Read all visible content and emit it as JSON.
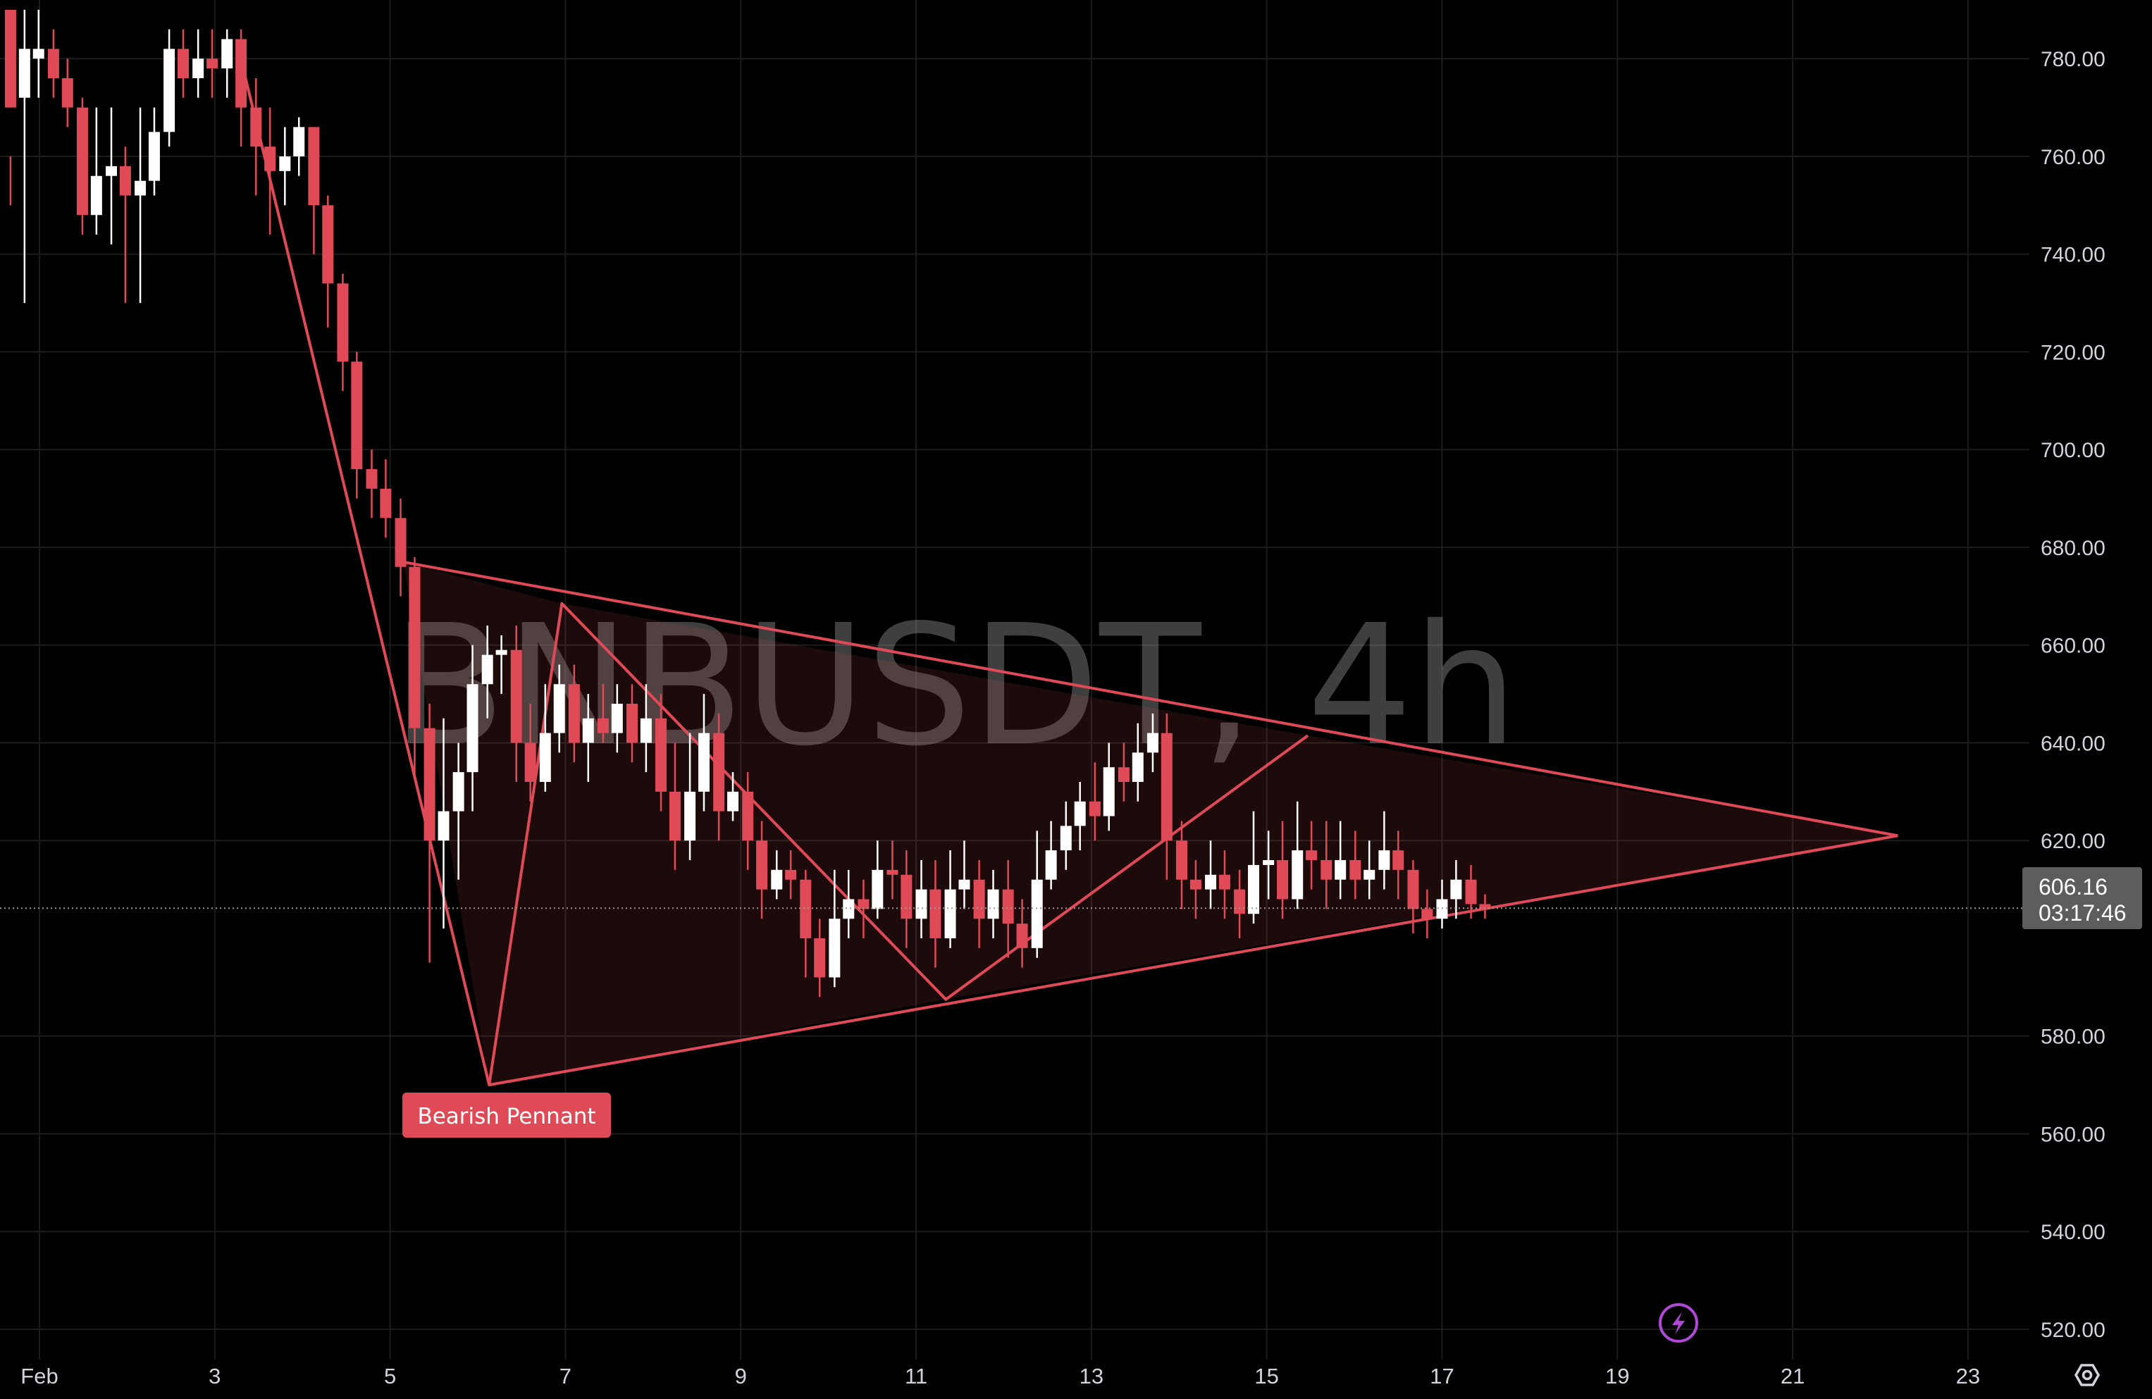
{
  "chart_data": {
    "type": "candlestick",
    "symbol": "BNBUSDT",
    "interval": "4h",
    "watermark": "BNBUSDT, 4h",
    "y_ticks": [
      780,
      760,
      740,
      720,
      700,
      680,
      660,
      640,
      620,
      580,
      560,
      540,
      520
    ],
    "y_tick_labels": [
      "780.00",
      "760.00",
      "740.00",
      "720.00",
      "700.00",
      "680.00",
      "660.00",
      "640.00",
      "620.00",
      "580.00",
      "560.00",
      "540.00",
      "520.00"
    ],
    "ylim": [
      513.8,
      792
    ],
    "x_tick_labels": [
      "Feb",
      "3",
      "5",
      "7",
      "9",
      "11",
      "13",
      "15",
      "17",
      "19",
      "21",
      "23"
    ],
    "x_tick_days": [
      1,
      3,
      5,
      7,
      9,
      11,
      13,
      15,
      17,
      19,
      21,
      23
    ],
    "xlim_days": [
      0.55,
      23.7
    ],
    "current_price": "606.16",
    "countdown": "03:17:46",
    "last_price": 606.16,
    "candles": [
      [
        0.67,
        790,
        770,
        760,
        750
      ],
      [
        0.83,
        772,
        782,
        790,
        730
      ],
      [
        0.99,
        780,
        782,
        790,
        772
      ],
      [
        1.16,
        782,
        776,
        786,
        772
      ],
      [
        1.32,
        776,
        770,
        780,
        766
      ],
      [
        1.49,
        770,
        748,
        772,
        744
      ],
      [
        1.65,
        748,
        756,
        770,
        744
      ],
      [
        1.82,
        756,
        758,
        770,
        742
      ],
      [
        1.98,
        758,
        752,
        762,
        730
      ],
      [
        2.15,
        752,
        755,
        770,
        730
      ],
      [
        2.31,
        755,
        765,
        770,
        752
      ],
      [
        2.48,
        765,
        782,
        786,
        762
      ],
      [
        2.64,
        782,
        776,
        786,
        772
      ],
      [
        2.81,
        776,
        780,
        786,
        772
      ],
      [
        2.97,
        780,
        778,
        786,
        772
      ],
      [
        3.14,
        778,
        784,
        786,
        772
      ],
      [
        3.3,
        784,
        770,
        786,
        762
      ],
      [
        3.47,
        770,
        762,
        776,
        752
      ],
      [
        3.63,
        762,
        757,
        770,
        744
      ],
      [
        3.8,
        757,
        760,
        766,
        750
      ],
      [
        3.96,
        760,
        766,
        768,
        756
      ],
      [
        4.13,
        766,
        750,
        766,
        740
      ],
      [
        4.29,
        750,
        734,
        752,
        725
      ],
      [
        4.46,
        734,
        718,
        736,
        712
      ],
      [
        4.62,
        718,
        696,
        720,
        690
      ],
      [
        4.79,
        696,
        692,
        700,
        686
      ],
      [
        4.95,
        692,
        686,
        698,
        682
      ],
      [
        5.12,
        686,
        676,
        690,
        670
      ],
      [
        5.28,
        676,
        643,
        678,
        633
      ],
      [
        5.45,
        643,
        620,
        648,
        595
      ],
      [
        5.61,
        620,
        626,
        645,
        602
      ],
      [
        5.78,
        626,
        634,
        640,
        612
      ],
      [
        5.94,
        634,
        652,
        660,
        626
      ],
      [
        6.11,
        652,
        658,
        664,
        645
      ],
      [
        6.27,
        658,
        659,
        662,
        650
      ],
      [
        6.44,
        659,
        640,
        664,
        632
      ],
      [
        6.6,
        640,
        632,
        648,
        628
      ],
      [
        6.77,
        632,
        642,
        652,
        630
      ],
      [
        6.93,
        642,
        652,
        656,
        638
      ],
      [
        7.1,
        652,
        640,
        656,
        636
      ],
      [
        7.26,
        640,
        645,
        650,
        632
      ],
      [
        7.43,
        645,
        642,
        652,
        640
      ],
      [
        7.59,
        642,
        648,
        652,
        638
      ],
      [
        7.76,
        648,
        640,
        652,
        636
      ],
      [
        7.92,
        640,
        645,
        652,
        634
      ],
      [
        8.09,
        645,
        630,
        650,
        626
      ],
      [
        8.25,
        630,
        620,
        640,
        614
      ],
      [
        8.42,
        620,
        630,
        642,
        616
      ],
      [
        8.58,
        630,
        642,
        650,
        626
      ],
      [
        8.75,
        642,
        626,
        646,
        620
      ],
      [
        8.91,
        626,
        630,
        634,
        624
      ],
      [
        9.08,
        630,
        620,
        634,
        614
      ],
      [
        9.24,
        620,
        610,
        624,
        604
      ],
      [
        9.41,
        610,
        614,
        618,
        608
      ],
      [
        9.57,
        614,
        612,
        618,
        608
      ],
      [
        9.74,
        612,
        600,
        614,
        592
      ],
      [
        9.9,
        600,
        592,
        604,
        588
      ],
      [
        10.07,
        592,
        604,
        614,
        590
      ],
      [
        10.23,
        604,
        608,
        614,
        600
      ],
      [
        10.4,
        608,
        606,
        612,
        600
      ],
      [
        10.56,
        606,
        614,
        620,
        604
      ],
      [
        10.73,
        614,
        613,
        620,
        608
      ],
      [
        10.89,
        613,
        604,
        618,
        598
      ],
      [
        11.06,
        604,
        610,
        616,
        600
      ],
      [
        11.22,
        610,
        600,
        616,
        594
      ],
      [
        11.39,
        600,
        610,
        618,
        598
      ],
      [
        11.55,
        610,
        612,
        620,
        606
      ],
      [
        11.72,
        612,
        604,
        616,
        598
      ],
      [
        11.88,
        604,
        610,
        614,
        600
      ],
      [
        12.05,
        610,
        603,
        616,
        596
      ],
      [
        12.21,
        603,
        598,
        608,
        594
      ],
      [
        12.38,
        598,
        612,
        622,
        596
      ],
      [
        12.54,
        612,
        618,
        624,
        610
      ],
      [
        12.71,
        618,
        623,
        628,
        614
      ],
      [
        12.87,
        623,
        628,
        632,
        618
      ],
      [
        13.04,
        628,
        625,
        636,
        620
      ],
      [
        13.2,
        625,
        635,
        640,
        622
      ],
      [
        13.37,
        635,
        632,
        640,
        628
      ],
      [
        13.53,
        632,
        638,
        644,
        628
      ],
      [
        13.7,
        638,
        642,
        646,
        634
      ],
      [
        13.86,
        642,
        620,
        646,
        612
      ],
      [
        14.03,
        620,
        612,
        624,
        606
      ],
      [
        14.19,
        612,
        610,
        616,
        604
      ],
      [
        14.36,
        610,
        613,
        620,
        606
      ],
      [
        14.52,
        613,
        610,
        618,
        604
      ],
      [
        14.69,
        610,
        605,
        614,
        600
      ],
      [
        14.85,
        605,
        615,
        626,
        603
      ],
      [
        15.02,
        615,
        616,
        622,
        608
      ],
      [
        15.18,
        616,
        608,
        624,
        604
      ],
      [
        15.35,
        608,
        618,
        628,
        606
      ],
      [
        15.51,
        618,
        616,
        624,
        610
      ],
      [
        15.68,
        616,
        612,
        624,
        606
      ],
      [
        15.84,
        612,
        616,
        624,
        608
      ],
      [
        16.01,
        616,
        612,
        622,
        608
      ],
      [
        16.17,
        612,
        614,
        620,
        608
      ],
      [
        16.34,
        614,
        618,
        626,
        610
      ],
      [
        16.5,
        618,
        614,
        622,
        608
      ],
      [
        16.67,
        614,
        606,
        616,
        601
      ],
      [
        16.83,
        606,
        604,
        610,
        600
      ],
      [
        17.0,
        604,
        608,
        612,
        602
      ],
      [
        17.16,
        608,
        612,
        616,
        604
      ],
      [
        17.33,
        612,
        607,
        615,
        604
      ],
      [
        17.49,
        607,
        606,
        609,
        604
      ]
    ],
    "pattern": {
      "label": "Bearish Pennant",
      "pole": [
        [
          3.25,
          783.5
        ],
        [
          5.15,
          677
        ]
      ],
      "pennant_polygon": [
        [
          5.15,
          677
        ],
        [
          6.96,
          668.5
        ],
        [
          15.47,
          641.5
        ],
        [
          22.2,
          621
        ],
        [
          11.34,
          587.5
        ],
        [
          6.13,
          570
        ]
      ],
      "upper_line": [
        [
          5.15,
          677
        ],
        [
          22.2,
          621
        ]
      ],
      "lower_line": [
        [
          6.13,
          570
        ],
        [
          22.2,
          621
        ]
      ],
      "zigzag": [
        [
          3.25,
          783.5
        ],
        [
          6.13,
          570
        ],
        [
          6.96,
          668.5
        ],
        [
          11.34,
          587.5
        ],
        [
          15.47,
          641.5
        ]
      ]
    },
    "colors": {
      "up": "#ffffff",
      "down": "#e04a57",
      "pattern": "#e04a57",
      "grid": "#1c1c1c",
      "text": "#d1d4dc",
      "price_label_bg": "#5d5d5d",
      "flash_icon": "#b248d8"
    },
    "grid": true
  },
  "ui": {
    "settings_icon": "gear-icon",
    "flash_icon": "lightning-icon"
  }
}
